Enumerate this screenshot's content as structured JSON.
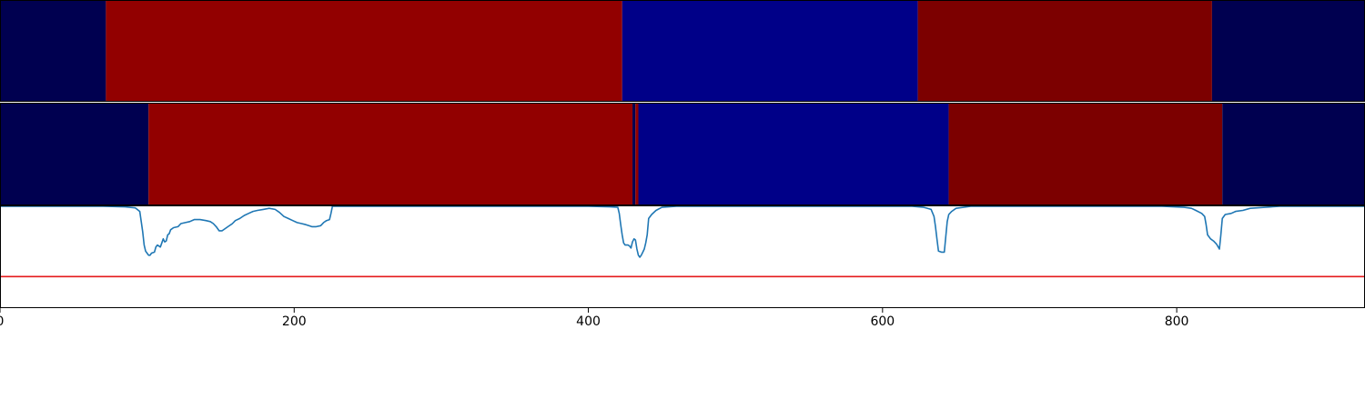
{
  "chart_data": [
    {
      "type": "heatmap",
      "xlim": [
        0,
        928
      ],
      "segments": [
        {
          "start": 0,
          "end": 72,
          "color": "#000050"
        },
        {
          "start": 72,
          "end": 423,
          "color": "#920000"
        },
        {
          "start": 423,
          "end": 624,
          "color": "#000088"
        },
        {
          "start": 624,
          "end": 824,
          "color": "#7c0000"
        },
        {
          "start": 824,
          "end": 928,
          "color": "#000050"
        }
      ]
    },
    {
      "type": "heatmap",
      "xlim": [
        0,
        928
      ],
      "segments": [
        {
          "start": 0,
          "end": 101,
          "color": "#000050"
        },
        {
          "start": 101,
          "end": 430,
          "color": "#920000"
        },
        {
          "start": 430,
          "end": 432,
          "color": "#000050"
        },
        {
          "start": 432,
          "end": 434,
          "color": "#920000"
        },
        {
          "start": 434,
          "end": 645,
          "color": "#000088"
        },
        {
          "start": 645,
          "end": 831,
          "color": "#7c0000"
        },
        {
          "start": 831,
          "end": 928,
          "color": "#000050"
        }
      ]
    },
    {
      "type": "line",
      "xlim": [
        0,
        928
      ],
      "ylim": [
        0,
        1
      ],
      "x_ticks": [
        "0",
        "200",
        "400",
        "600",
        "800"
      ],
      "series": [
        {
          "color": "#1f77b4",
          "points": [
            [
              0,
              1.0
            ],
            [
              70,
              1.0
            ],
            [
              85,
              0.995
            ],
            [
              92,
              0.985
            ],
            [
              95,
              0.95
            ],
            [
              96,
              0.85
            ],
            [
              97,
              0.75
            ],
            [
              98,
              0.62
            ],
            [
              99,
              0.56
            ],
            [
              100,
              0.54
            ],
            [
              101,
              0.52
            ],
            [
              102,
              0.52
            ],
            [
              103,
              0.54
            ],
            [
              105,
              0.55
            ],
            [
              106,
              0.6
            ],
            [
              107,
              0.62
            ],
            [
              108,
              0.61
            ],
            [
              109,
              0.6
            ],
            [
              110,
              0.64
            ],
            [
              111,
              0.68
            ],
            [
              112,
              0.65
            ],
            [
              113,
              0.66
            ],
            [
              114,
              0.72
            ],
            [
              115,
              0.73
            ],
            [
              116,
              0.77
            ],
            [
              118,
              0.79
            ],
            [
              121,
              0.8
            ],
            [
              123,
              0.83
            ],
            [
              126,
              0.84
            ],
            [
              129,
              0.85
            ],
            [
              132,
              0.87
            ],
            [
              136,
              0.87
            ],
            [
              140,
              0.86
            ],
            [
              143,
              0.85
            ],
            [
              145,
              0.83
            ],
            [
              147,
              0.8
            ],
            [
              149,
              0.76
            ],
            [
              151,
              0.76
            ],
            [
              153,
              0.78
            ],
            [
              155,
              0.8
            ],
            [
              158,
              0.83
            ],
            [
              160,
              0.86
            ],
            [
              163,
              0.88
            ],
            [
              166,
              0.91
            ],
            [
              169,
              0.93
            ],
            [
              172,
              0.95
            ],
            [
              175,
              0.96
            ],
            [
              179,
              0.97
            ],
            [
              183,
              0.98
            ],
            [
              187,
              0.97
            ],
            [
              190,
              0.94
            ],
            [
              193,
              0.9
            ],
            [
              196,
              0.88
            ],
            [
              199,
              0.86
            ],
            [
              202,
              0.84
            ],
            [
              205,
              0.83
            ],
            [
              208,
              0.82
            ],
            [
              210,
              0.81
            ],
            [
              212,
              0.8
            ],
            [
              215,
              0.8
            ],
            [
              218,
              0.81
            ],
            [
              220,
              0.84
            ],
            [
              222,
              0.86
            ],
            [
              224,
              0.87
            ],
            [
              225,
              0.93
            ],
            [
              226,
              1.0
            ],
            [
              300,
              1.0
            ],
            [
              400,
              1.0
            ],
            [
              415,
              0.995
            ],
            [
              420,
              0.99
            ],
            [
              421,
              0.93
            ],
            [
              422,
              0.82
            ],
            [
              423,
              0.72
            ],
            [
              424,
              0.64
            ],
            [
              425,
              0.62
            ],
            [
              427,
              0.62
            ],
            [
              428,
              0.61
            ],
            [
              429,
              0.59
            ],
            [
              430,
              0.65
            ],
            [
              431,
              0.68
            ],
            [
              432,
              0.67
            ],
            [
              433,
              0.58
            ],
            [
              434,
              0.52
            ],
            [
              435,
              0.5
            ],
            [
              436,
              0.52
            ],
            [
              437,
              0.55
            ],
            [
              438,
              0.58
            ],
            [
              439,
              0.64
            ],
            [
              440,
              0.72
            ],
            [
              441,
              0.88
            ],
            [
              443,
              0.92
            ],
            [
              446,
              0.96
            ],
            [
              450,
              0.99
            ],
            [
              460,
              1.0
            ],
            [
              620,
              1.0
            ],
            [
              628,
              0.99
            ],
            [
              633,
              0.97
            ],
            [
              635,
              0.9
            ],
            [
              636,
              0.8
            ],
            [
              637,
              0.68
            ],
            [
              638,
              0.56
            ],
            [
              640,
              0.55
            ],
            [
              642,
              0.55
            ],
            [
              643,
              0.7
            ],
            [
              644,
              0.85
            ],
            [
              645,
              0.92
            ],
            [
              647,
              0.95
            ],
            [
              650,
              0.98
            ],
            [
              660,
              1.0
            ],
            [
              790,
              1.0
            ],
            [
              805,
              0.99
            ],
            [
              810,
              0.98
            ],
            [
              813,
              0.96
            ],
            [
              817,
              0.93
            ],
            [
              819,
              0.9
            ],
            [
              820,
              0.82
            ],
            [
              821,
              0.72
            ],
            [
              823,
              0.68
            ],
            [
              825,
              0.66
            ],
            [
              827,
              0.63
            ],
            [
              829,
              0.58
            ],
            [
              830,
              0.72
            ],
            [
              831,
              0.88
            ],
            [
              833,
              0.92
            ],
            [
              837,
              0.93
            ],
            [
              840,
              0.95
            ],
            [
              845,
              0.96
            ],
            [
              850,
              0.98
            ],
            [
              860,
              0.99
            ],
            [
              870,
              1.0
            ],
            [
              928,
              1.0
            ]
          ]
        },
        {
          "color": "#e41a1c",
          "points": [
            [
              0,
              0.31
            ],
            [
              928,
              0.31
            ]
          ]
        }
      ]
    }
  ]
}
